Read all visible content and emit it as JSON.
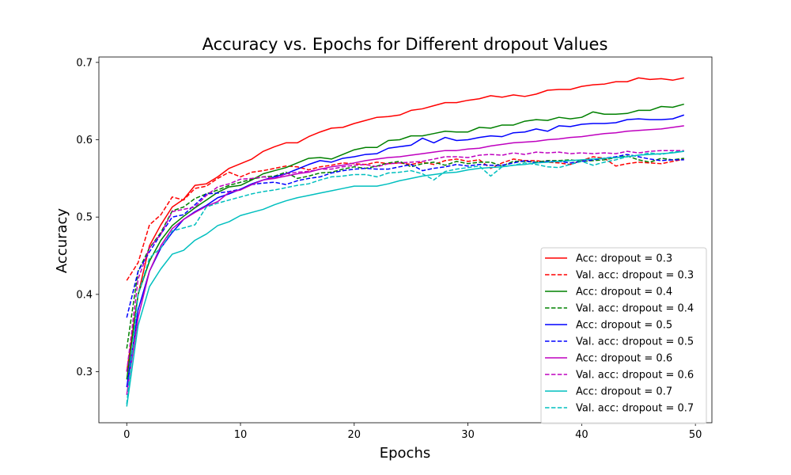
{
  "chart_data": {
    "type": "line",
    "title": "Accuracy vs. Epochs for Different dropout Values",
    "xlabel": "Epochs",
    "ylabel": "Accuracy",
    "xlim": [
      -2.45,
      51.45
    ],
    "ylim": [
      0.234,
      0.707
    ],
    "xticks": [
      0,
      10,
      20,
      30,
      40,
      50
    ],
    "yticks": [
      0.3,
      0.4,
      0.5,
      0.6,
      0.7
    ],
    "grid": false,
    "legend_position": "lower-right",
    "x": [
      0,
      1,
      2,
      3,
      4,
      5,
      6,
      7,
      8,
      9,
      10,
      11,
      12,
      13,
      14,
      15,
      16,
      17,
      18,
      19,
      20,
      21,
      22,
      23,
      24,
      25,
      26,
      27,
      28,
      29,
      30,
      31,
      32,
      33,
      34,
      35,
      36,
      37,
      38,
      39,
      40,
      41,
      42,
      43,
      44,
      45,
      46,
      47,
      48,
      49
    ],
    "series": [
      {
        "name": "Acc: dropout = 0.3",
        "color": "#ff0000",
        "dash": "solid",
        "values": [
          0.3,
          0.4,
          0.463,
          0.49,
          0.513,
          0.523,
          0.541,
          0.543,
          0.552,
          0.563,
          0.569,
          0.575,
          0.585,
          0.591,
          0.596,
          0.596,
          0.604,
          0.61,
          0.615,
          0.616,
          0.621,
          0.625,
          0.629,
          0.63,
          0.632,
          0.638,
          0.64,
          0.644,
          0.648,
          0.648,
          0.651,
          0.653,
          0.657,
          0.655,
          0.658,
          0.656,
          0.659,
          0.664,
          0.665,
          0.665,
          0.669,
          0.671,
          0.672,
          0.675,
          0.675,
          0.68,
          0.678,
          0.679,
          0.677,
          0.68
        ]
      },
      {
        "name": "Val. acc: dropout = 0.3",
        "color": "#ff0000",
        "dash": "dashed",
        "values": [
          0.418,
          0.441,
          0.49,
          0.503,
          0.526,
          0.522,
          0.537,
          0.54,
          0.55,
          0.558,
          0.552,
          0.558,
          0.56,
          0.563,
          0.566,
          0.565,
          0.561,
          0.565,
          0.567,
          0.57,
          0.569,
          0.568,
          0.571,
          0.569,
          0.57,
          0.568,
          0.571,
          0.568,
          0.573,
          0.575,
          0.572,
          0.574,
          0.563,
          0.57,
          0.575,
          0.573,
          0.573,
          0.571,
          0.57,
          0.568,
          0.573,
          0.578,
          0.576,
          0.566,
          0.569,
          0.571,
          0.57,
          0.569,
          0.572,
          0.575
        ]
      },
      {
        "name": "Acc: dropout = 0.4",
        "color": "#008000",
        "dash": "solid",
        "values": [
          0.29,
          0.4,
          0.443,
          0.47,
          0.489,
          0.501,
          0.512,
          0.522,
          0.532,
          0.539,
          0.541,
          0.548,
          0.556,
          0.56,
          0.564,
          0.57,
          0.576,
          0.577,
          0.575,
          0.581,
          0.587,
          0.59,
          0.59,
          0.599,
          0.6,
          0.605,
          0.605,
          0.608,
          0.611,
          0.61,
          0.61,
          0.616,
          0.615,
          0.619,
          0.619,
          0.624,
          0.626,
          0.625,
          0.629,
          0.627,
          0.629,
          0.636,
          0.633,
          0.633,
          0.634,
          0.638,
          0.638,
          0.643,
          0.642,
          0.646
        ]
      },
      {
        "name": "Val. acc: dropout = 0.4",
        "color": "#008000",
        "dash": "dashed",
        "values": [
          0.33,
          0.43,
          0.46,
          0.48,
          0.508,
          0.513,
          0.524,
          0.53,
          0.535,
          0.541,
          0.545,
          0.549,
          0.552,
          0.553,
          0.558,
          0.55,
          0.553,
          0.557,
          0.558,
          0.562,
          0.565,
          0.563,
          0.566,
          0.57,
          0.572,
          0.565,
          0.569,
          0.571,
          0.567,
          0.572,
          0.569,
          0.571,
          0.571,
          0.566,
          0.572,
          0.572,
          0.571,
          0.573,
          0.573,
          0.574,
          0.572,
          0.573,
          0.574,
          0.577,
          0.579,
          0.574,
          0.571,
          0.576,
          0.574,
          0.576
        ]
      },
      {
        "name": "Acc: dropout = 0.5",
        "color": "#0000ff",
        "dash": "solid",
        "values": [
          0.28,
          0.38,
          0.43,
          0.46,
          0.48,
          0.497,
          0.507,
          0.515,
          0.525,
          0.53,
          0.536,
          0.543,
          0.548,
          0.552,
          0.556,
          0.562,
          0.568,
          0.573,
          0.571,
          0.576,
          0.578,
          0.581,
          0.582,
          0.589,
          0.591,
          0.593,
          0.602,
          0.596,
          0.603,
          0.599,
          0.6,
          0.603,
          0.605,
          0.604,
          0.609,
          0.61,
          0.614,
          0.611,
          0.618,
          0.617,
          0.62,
          0.621,
          0.621,
          0.622,
          0.626,
          0.627,
          0.626,
          0.626,
          0.627,
          0.632
        ]
      },
      {
        "name": "Val. acc: dropout = 0.5",
        "color": "#0000ff",
        "dash": "dashed",
        "values": [
          0.37,
          0.43,
          0.455,
          0.478,
          0.5,
          0.503,
          0.516,
          0.53,
          0.531,
          0.533,
          0.536,
          0.542,
          0.544,
          0.545,
          0.542,
          0.547,
          0.55,
          0.552,
          0.557,
          0.56,
          0.562,
          0.563,
          0.562,
          0.562,
          0.565,
          0.568,
          0.56,
          0.563,
          0.565,
          0.568,
          0.566,
          0.568,
          0.567,
          0.567,
          0.57,
          0.573,
          0.57,
          0.572,
          0.572,
          0.57,
          0.572,
          0.574,
          0.576,
          0.578,
          0.581,
          0.578,
          0.575,
          0.573,
          0.574,
          0.574
        ]
      },
      {
        "name": "Acc: dropout = 0.6",
        "color": "#bf00bf",
        "dash": "solid",
        "values": [
          0.27,
          0.37,
          0.43,
          0.463,
          0.485,
          0.497,
          0.506,
          0.514,
          0.52,
          0.532,
          0.535,
          0.542,
          0.548,
          0.55,
          0.553,
          0.556,
          0.558,
          0.562,
          0.565,
          0.567,
          0.57,
          0.573,
          0.575,
          0.577,
          0.578,
          0.58,
          0.582,
          0.584,
          0.586,
          0.586,
          0.588,
          0.589,
          0.592,
          0.594,
          0.596,
          0.597,
          0.598,
          0.6,
          0.601,
          0.603,
          0.604,
          0.606,
          0.608,
          0.609,
          0.611,
          0.612,
          0.613,
          0.614,
          0.616,
          0.618
        ]
      },
      {
        "name": "Val. acc: dropout = 0.6",
        "color": "#bf00bf",
        "dash": "dashed",
        "values": [
          0.3,
          0.42,
          0.46,
          0.478,
          0.507,
          0.51,
          0.513,
          0.528,
          0.539,
          0.543,
          0.549,
          0.55,
          0.552,
          0.55,
          0.556,
          0.558,
          0.559,
          0.562,
          0.562,
          0.565,
          0.567,
          0.568,
          0.565,
          0.569,
          0.57,
          0.571,
          0.572,
          0.575,
          0.578,
          0.578,
          0.577,
          0.58,
          0.581,
          0.58,
          0.583,
          0.581,
          0.584,
          0.583,
          0.584,
          0.582,
          0.583,
          0.582,
          0.583,
          0.582,
          0.585,
          0.583,
          0.585,
          0.586,
          0.586,
          0.586
        ]
      },
      {
        "name": "Acc: dropout = 0.7",
        "color": "#00bfbf",
        "dash": "solid",
        "values": [
          0.255,
          0.36,
          0.41,
          0.433,
          0.452,
          0.457,
          0.47,
          0.478,
          0.489,
          0.494,
          0.502,
          0.506,
          0.51,
          0.516,
          0.521,
          0.525,
          0.528,
          0.531,
          0.534,
          0.537,
          0.54,
          0.54,
          0.54,
          0.543,
          0.547,
          0.55,
          0.553,
          0.555,
          0.557,
          0.558,
          0.561,
          0.563,
          0.564,
          0.565,
          0.567,
          0.568,
          0.57,
          0.571,
          0.572,
          0.573,
          0.574,
          0.575,
          0.576,
          0.577,
          0.578,
          0.58,
          0.581,
          0.582,
          0.583,
          0.585
        ]
      },
      {
        "name": "Val. acc: dropout = 0.7",
        "color": "#00bfbf",
        "dash": "dashed",
        "values": [
          0.258,
          0.4,
          0.447,
          0.46,
          0.482,
          0.486,
          0.49,
          0.513,
          0.518,
          0.522,
          0.526,
          0.53,
          0.533,
          0.535,
          0.538,
          0.541,
          0.543,
          0.548,
          0.552,
          0.553,
          0.555,
          0.555,
          0.552,
          0.557,
          0.558,
          0.56,
          0.556,
          0.548,
          0.559,
          0.562,
          0.564,
          0.566,
          0.553,
          0.565,
          0.567,
          0.57,
          0.568,
          0.565,
          0.564,
          0.568,
          0.572,
          0.567,
          0.571,
          0.574,
          0.578,
          0.58,
          0.583,
          0.581,
          0.584,
          0.585
        ]
      }
    ]
  }
}
